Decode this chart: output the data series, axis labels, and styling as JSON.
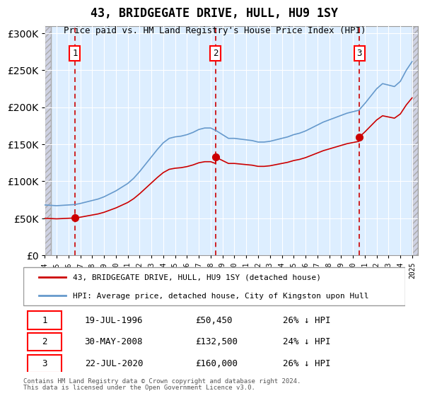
{
  "title": "43, BRIDGEGATE DRIVE, HULL, HU9 1SY",
  "subtitle": "Price paid vs. HM Land Registry's House Price Index (HPI)",
  "legend_line1": "43, BRIDGEGATE DRIVE, HULL, HU9 1SY (detached house)",
  "legend_line2": "HPI: Average price, detached house, City of Kingston upon Hull",
  "footer1": "Contains HM Land Registry data © Crown copyright and database right 2024.",
  "footer2": "This data is licensed under the Open Government Licence v3.0.",
  "transactions": [
    {
      "label": "1",
      "date": "19-JUL-1996",
      "price": 50450,
      "year": 1996.54,
      "pct": "26% ↓ HPI"
    },
    {
      "label": "2",
      "date": "30-MAY-2008",
      "price": 132500,
      "year": 2008.41,
      "pct": "24% ↓ HPI"
    },
    {
      "label": "3",
      "date": "22-JUL-2020",
      "price": 160000,
      "year": 2020.55,
      "pct": "26% ↓ HPI"
    }
  ],
  "hpi_color": "#6699cc",
  "price_color": "#cc0000",
  "vline_color": "#cc0000",
  "background_color": "#ddeeff",
  "hatch_color": "#bbbbcc",
  "ylim": [
    0,
    310000
  ],
  "xlim_start": 1994.0,
  "xlim_end": 2025.5
}
